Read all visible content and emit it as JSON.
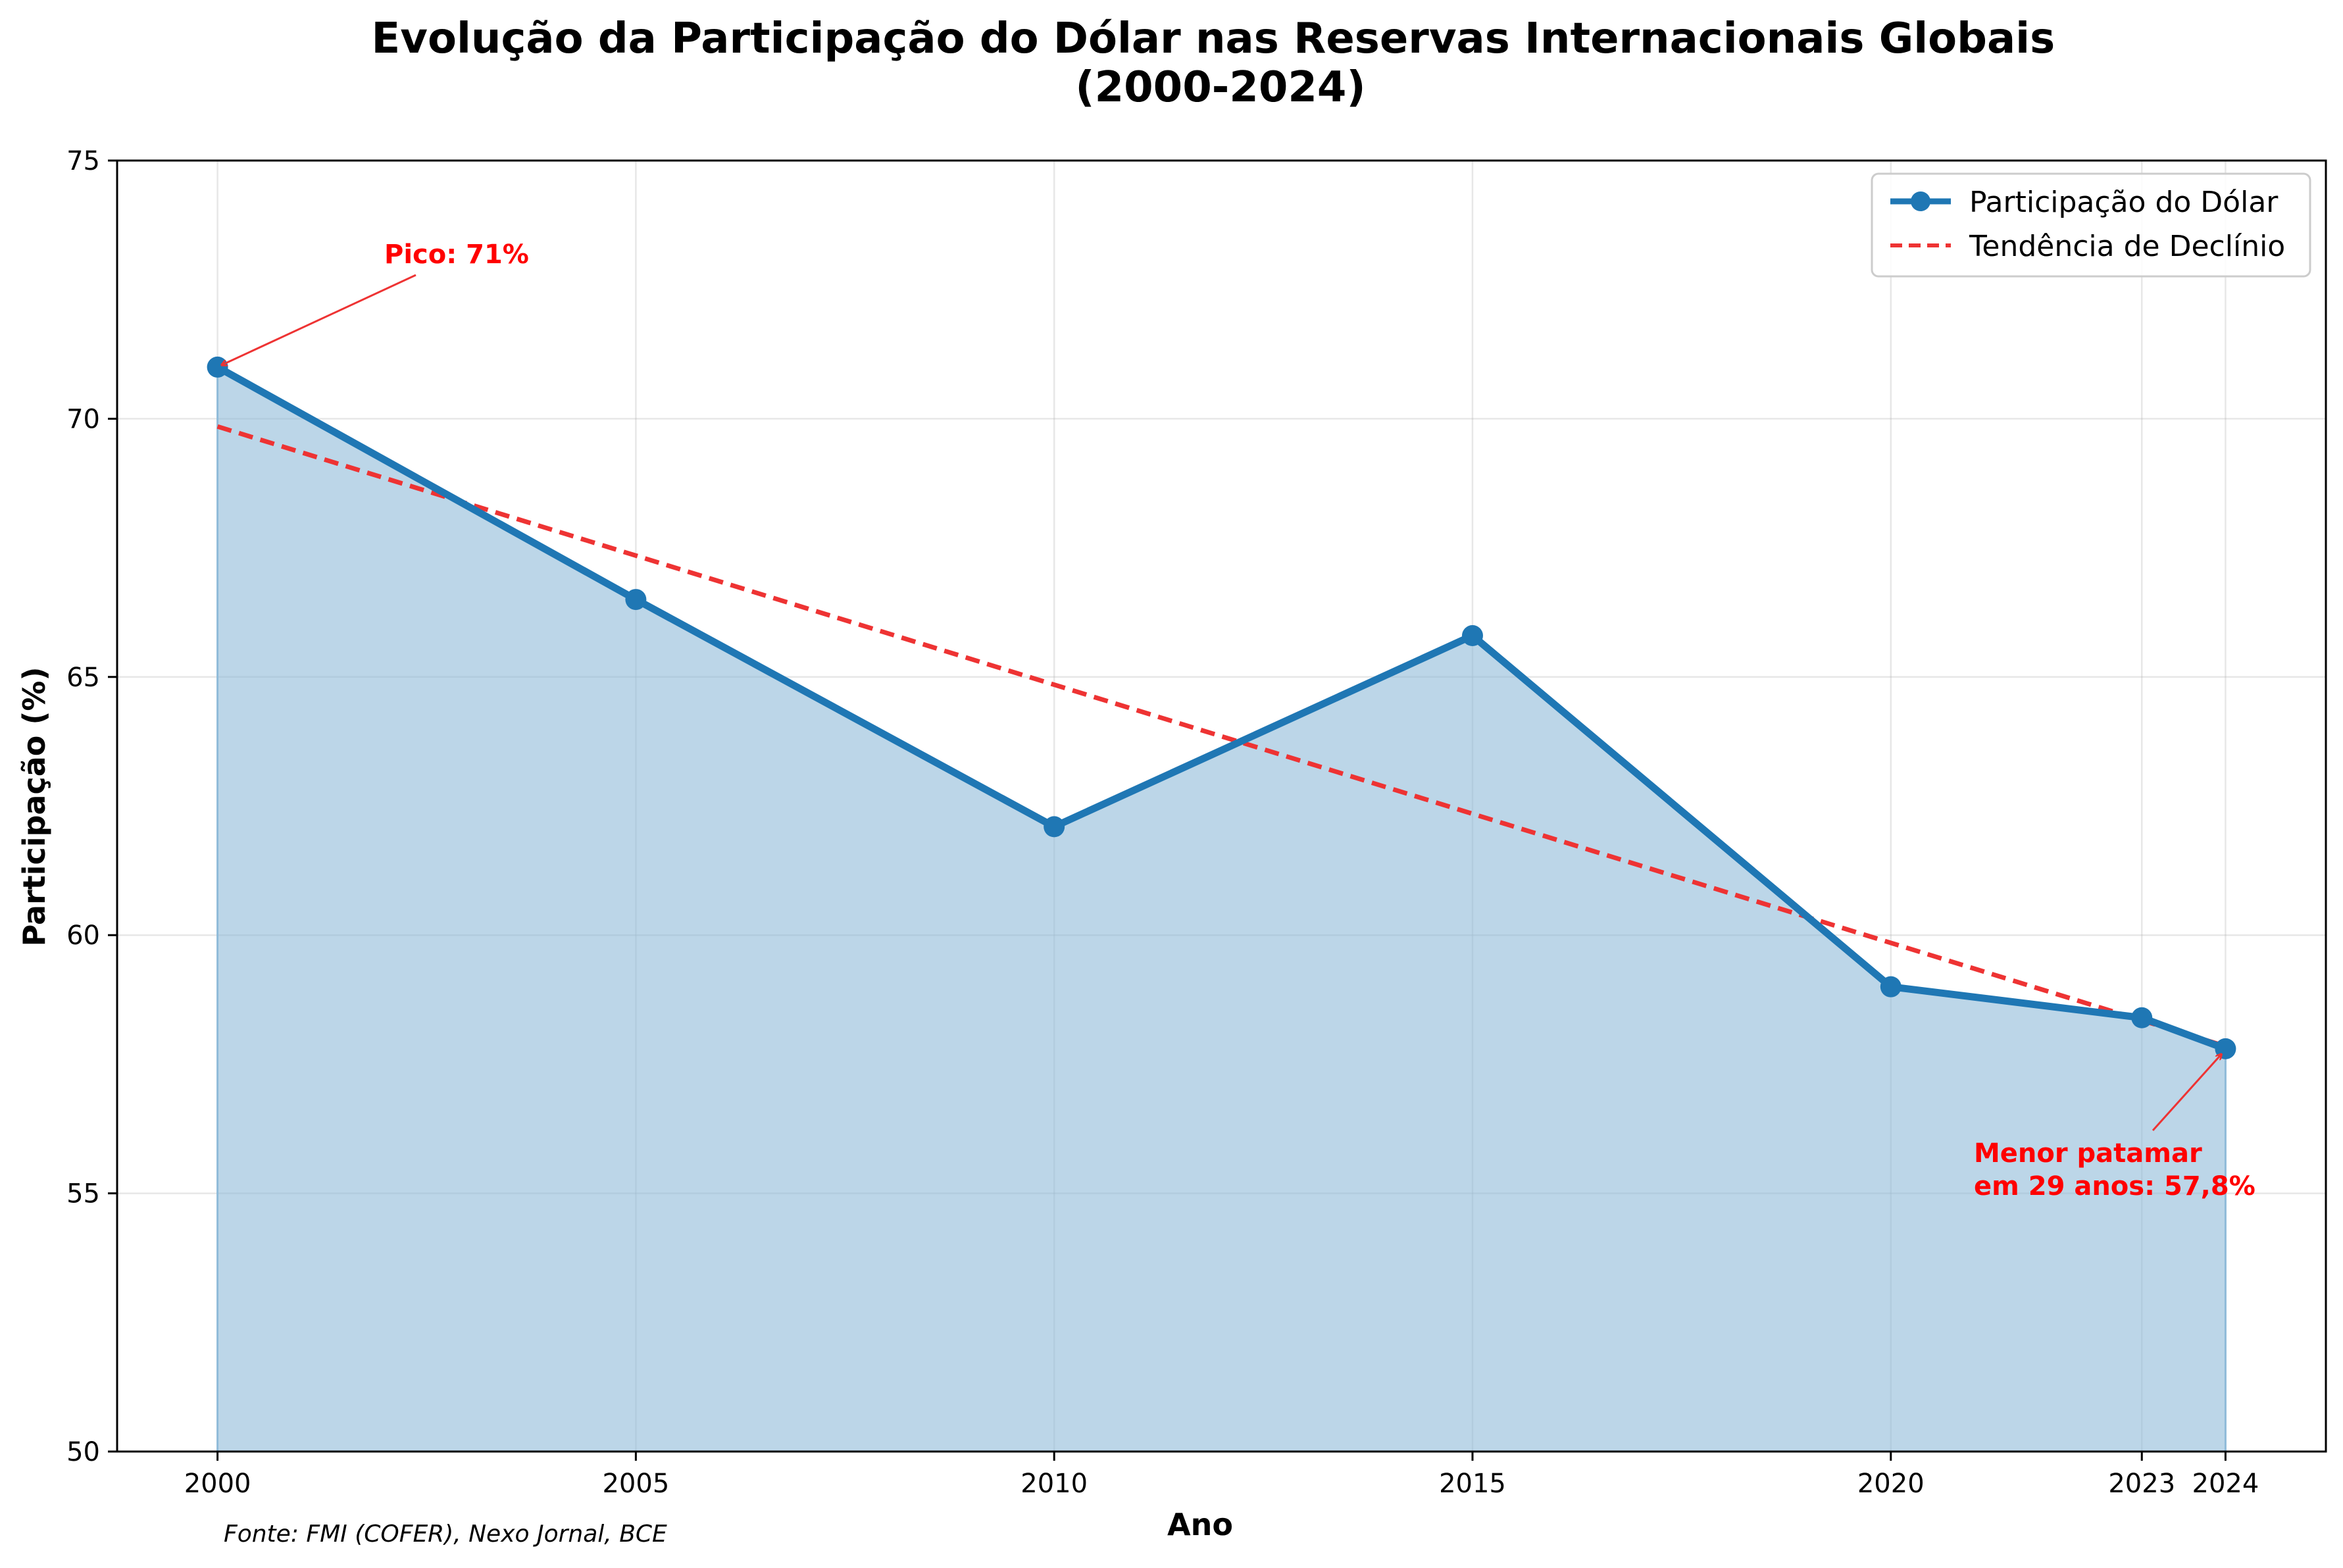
{
  "chart_data": {
    "type": "line",
    "title": "Evolução da Participação do Dólar nas Reservas Internacionais Globais\n(2000-2024)",
    "xlabel": "Ano",
    "ylabel": "Participação (%)",
    "xticks": [
      2000,
      2005,
      2010,
      2015,
      2020,
      2023,
      2024
    ],
    "yticks": [
      50,
      55,
      60,
      65,
      70,
      75
    ],
    "xlim": [
      1998.8,
      2025.2
    ],
    "ylim": [
      50,
      75
    ],
    "grid": true,
    "legend_position": "top-right",
    "series": [
      {
        "name": "Participação do Dólar",
        "color": "#1f77b4",
        "fill": true,
        "marker": "circle",
        "x": [
          2000,
          2005,
          2010,
          2015,
          2020,
          2023,
          2024
        ],
        "y": [
          71.0,
          66.5,
          62.1,
          65.8,
          59.0,
          58.4,
          57.8
        ]
      },
      {
        "name": "Tendência de Declínio",
        "color": "#ee3333",
        "style": "dashed",
        "x": [
          2000,
          2024
        ],
        "y": [
          69.85,
          57.85
        ]
      }
    ],
    "annotations": [
      {
        "text": "Pico: 71%",
        "point": [
          2000,
          71.0
        ],
        "color": "#ff0000"
      },
      {
        "text": "Menor patamar\nem 29 anos: 57,8%",
        "point": [
          2024,
          57.8
        ],
        "color": "#ff0000"
      }
    ],
    "source_note": "Fonte: FMI (COFER), Nexo Jornal, BCE"
  }
}
